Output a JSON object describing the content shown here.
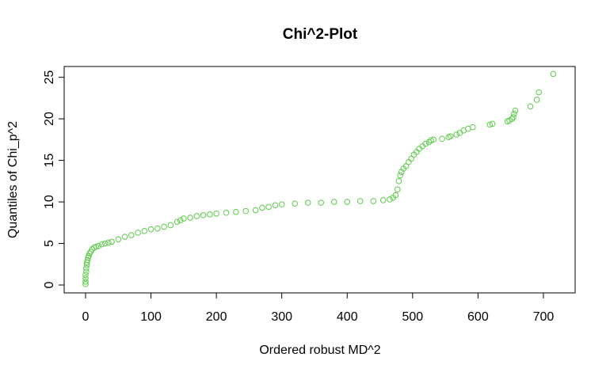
{
  "chart_data": {
    "type": "scatter",
    "title": "Chi^2-Plot",
    "x_label": "Ordered robust MD^2",
    "y_label": "Quantiles of Chi_p^2",
    "color": "#5dcb4b",
    "x": [
      0,
      0,
      0,
      0,
      1,
      1,
      2,
      2,
      3,
      4,
      5,
      6,
      8,
      10,
      13,
      16,
      20,
      25,
      30,
      35,
      40,
      50,
      60,
      70,
      80,
      90,
      100,
      110,
      120,
      130,
      140,
      145,
      150,
      160,
      170,
      180,
      190,
      200,
      215,
      230,
      245,
      260,
      270,
      280,
      290,
      300,
      320,
      340,
      360,
      380,
      400,
      420,
      440,
      455,
      465,
      470,
      474,
      477,
      479,
      481,
      483,
      486,
      490,
      494,
      498,
      502,
      506,
      510,
      515,
      520,
      525,
      528,
      532,
      545,
      555,
      558,
      567,
      572,
      578,
      585,
      592,
      618,
      622,
      645,
      648,
      652,
      654,
      655,
      657,
      680,
      690,
      693,
      715
    ],
    "values": [
      0.1,
      0.4,
      0.8,
      1.2,
      1.6,
      2.0,
      2.4,
      2.7,
      3.0,
      3.3,
      3.5,
      3.8,
      4.0,
      4.3,
      4.5,
      4.6,
      4.7,
      4.9,
      5.0,
      5.1,
      5.2,
      5.5,
      5.8,
      6.0,
      6.3,
      6.5,
      6.7,
      6.8,
      7.0,
      7.2,
      7.6,
      7.8,
      8.0,
      8.1,
      8.3,
      8.4,
      8.5,
      8.6,
      8.7,
      8.8,
      8.9,
      9.0,
      9.3,
      9.4,
      9.6,
      9.7,
      9.8,
      9.9,
      9.9,
      10.0,
      10.0,
      10.1,
      10.1,
      10.2,
      10.3,
      10.5,
      10.8,
      11.5,
      12.5,
      13.2,
      13.6,
      14.0,
      14.3,
      14.8,
      15.2,
      15.7,
      16.0,
      16.4,
      16.7,
      17.0,
      17.2,
      17.4,
      17.5,
      17.6,
      17.8,
      17.9,
      18.1,
      18.3,
      18.6,
      18.8,
      19.0,
      19.3,
      19.4,
      19.7,
      19.8,
      20.0,
      20.2,
      20.6,
      21.0,
      21.5,
      22.3,
      23.2,
      25.4
    ],
    "xlim": [
      -32.7,
      748.5
    ],
    "ylim": [
      -0.95,
      26.3
    ],
    "xticks": [
      0,
      100,
      200,
      300,
      400,
      500,
      600,
      700
    ],
    "yticks": [
      0,
      5,
      10,
      15,
      20,
      25
    ],
    "grid": false
  }
}
